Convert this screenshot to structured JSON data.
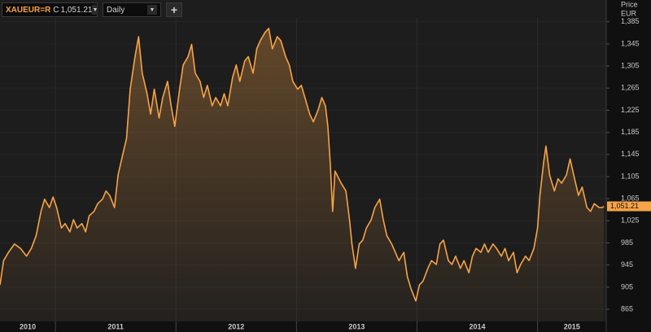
{
  "toolbar": {
    "instrument": "XAUEUR=R",
    "price_type": "C",
    "last_price": "1,051.21",
    "interval": "Daily",
    "add_button": "+"
  },
  "chart_data": {
    "type": "area-line",
    "y_axis_title": "Price",
    "y_axis_unit": "EUR",
    "color": "#f7a347",
    "grid": true,
    "last_label": "1,051.21",
    "xlim": [
      2010.54,
      2015.57
    ],
    "xticks": [
      2010,
      2011,
      2012,
      2013,
      2014,
      2015
    ],
    "ylim": [
      843,
      1392
    ],
    "yticks": [
      865,
      905,
      945,
      985,
      {
        "value": 1025,
        "label": "1,025"
      },
      {
        "value": 1065,
        "label": "1,065"
      },
      {
        "value": 1105,
        "label": "1,105"
      },
      {
        "value": 1145,
        "label": "1,145"
      },
      {
        "value": 1185,
        "label": "1,185"
      },
      {
        "value": 1225,
        "label": "1,225"
      },
      {
        "value": 1265,
        "label": "1,265"
      },
      {
        "value": 1305,
        "label": "1,305"
      },
      {
        "value": 1345,
        "label": "1,345"
      },
      {
        "value": 1385,
        "label": "1,385"
      }
    ],
    "x": [
      2010.54,
      2010.57,
      2010.61,
      2010.66,
      2010.71,
      2010.76,
      2010.8,
      2010.84,
      2010.88,
      2010.91,
      2010.95,
      2010.98,
      2011.01,
      2011.05,
      2011.08,
      2011.12,
      2011.15,
      2011.18,
      2011.22,
      2011.25,
      2011.28,
      2011.32,
      2011.35,
      2011.39,
      2011.42,
      2011.45,
      2011.49,
      2011.52,
      2011.55,
      2011.59,
      2011.62,
      2011.66,
      2011.69,
      2011.72,
      2011.76,
      2011.79,
      2011.82,
      2011.86,
      2011.89,
      2011.93,
      2011.96,
      2011.99,
      2012.03,
      2012.06,
      2012.1,
      2012.13,
      2012.16,
      2012.2,
      2012.23,
      2012.26,
      2012.3,
      2012.33,
      2012.37,
      2012.4,
      2012.43,
      2012.47,
      2012.5,
      2012.53,
      2012.57,
      2012.6,
      2012.64,
      2012.67,
      2012.7,
      2012.74,
      2012.77,
      2012.8,
      2012.84,
      2012.87,
      2012.91,
      2012.94,
      2012.97,
      2013.01,
      2013.04,
      2013.07,
      2013.11,
      2013.14,
      2013.18,
      2013.21,
      2013.24,
      2013.26,
      2013.28,
      2013.3,
      2013.32,
      2013.37,
      2013.41,
      2013.44,
      2013.46,
      2013.49,
      2013.52,
      2013.55,
      2013.58,
      2013.62,
      2013.65,
      2013.69,
      2013.72,
      2013.75,
      2013.79,
      2013.82,
      2013.85,
      2013.89,
      2013.92,
      2013.95,
      2013.99,
      2014.02,
      2014.05,
      2014.09,
      2014.12,
      2014.16,
      2014.19,
      2014.22,
      2014.26,
      2014.29,
      2014.32,
      2014.36,
      2014.39,
      2014.43,
      2014.46,
      2014.49,
      2014.53,
      2014.56,
      2014.59,
      2014.63,
      2014.66,
      2014.7,
      2014.73,
      2014.76,
      2014.8,
      2014.83,
      2014.86,
      2014.9,
      2014.93,
      2014.97,
      2015.0,
      2015.02,
      2015.05,
      2015.07,
      2015.1,
      2015.14,
      2015.17,
      2015.2,
      2015.24,
      2015.27,
      2015.3,
      2015.34,
      2015.37,
      2015.41,
      2015.44,
      2015.47,
      2015.51,
      2015.54,
      2015.55
    ],
    "values": [
      909,
      953,
      968,
      983,
      975,
      961,
      975,
      998,
      1042,
      1064,
      1049,
      1068,
      1049,
      1012,
      1020,
      1005,
      1027,
      1012,
      1020,
      1005,
      1034,
      1042,
      1056,
      1064,
      1079,
      1071,
      1049,
      1108,
      1137,
      1174,
      1263,
      1322,
      1358,
      1292,
      1255,
      1218,
      1263,
      1211,
      1248,
      1277,
      1233,
      1196,
      1263,
      1307,
      1322,
      1344,
      1292,
      1277,
      1248,
      1270,
      1233,
      1248,
      1233,
      1255,
      1233,
      1285,
      1307,
      1277,
      1314,
      1322,
      1292,
      1336,
      1351,
      1366,
      1373,
      1336,
      1358,
      1351,
      1322,
      1307,
      1277,
      1263,
      1270,
      1248,
      1218,
      1204,
      1226,
      1248,
      1233,
      1196,
      1130,
      1042,
      1115,
      1093,
      1079,
      1027,
      983,
      939,
      983,
      990,
      1012,
      1027,
      1049,
      1064,
      1027,
      998,
      983,
      968,
      953,
      968,
      924,
      902,
      880,
      909,
      916,
      939,
      953,
      946,
      983,
      990,
      953,
      946,
      961,
      939,
      953,
      931,
      961,
      975,
      968,
      983,
      968,
      983,
      975,
      961,
      975,
      953,
      968,
      931,
      946,
      961,
      953,
      975,
      1012,
      1071,
      1130,
      1160,
      1108,
      1079,
      1101,
      1093,
      1108,
      1137,
      1108,
      1071,
      1086,
      1049,
      1042,
      1056,
      1049,
      1049,
      1051.21
    ]
  }
}
